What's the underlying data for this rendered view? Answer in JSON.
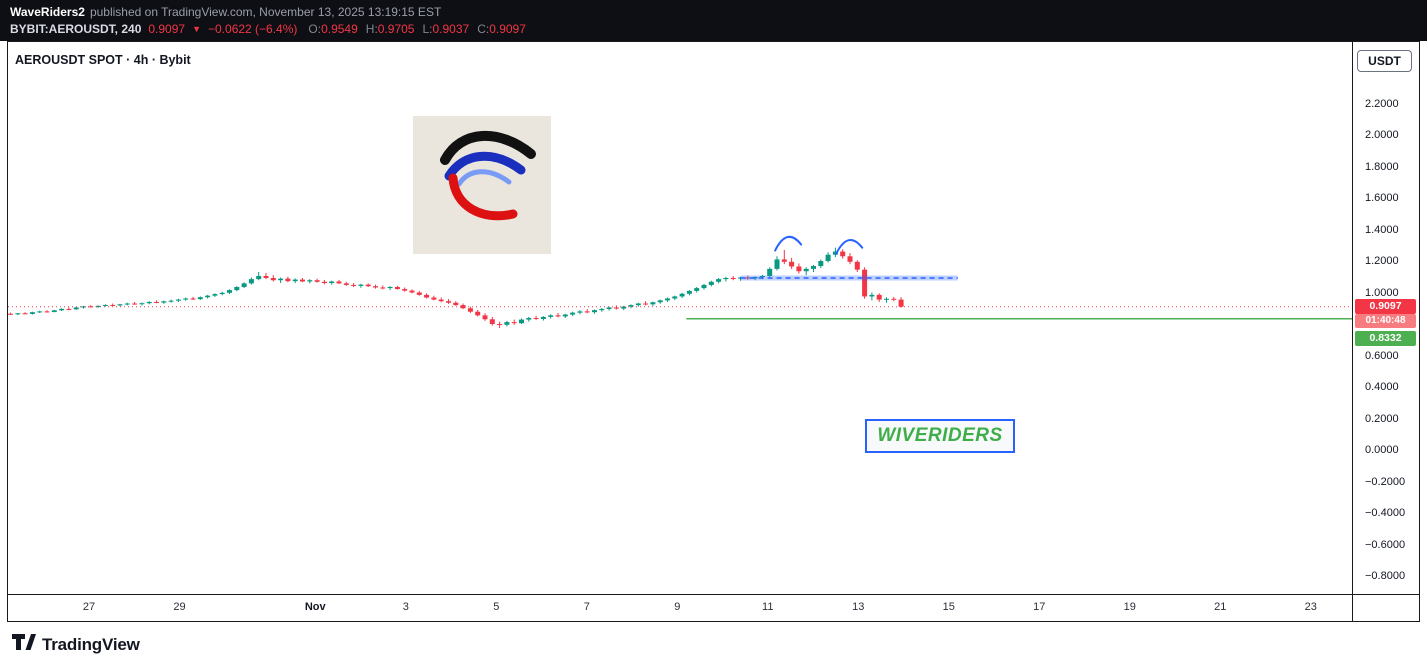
{
  "header": {
    "author": "WaveRiders2",
    "published_text": "published on TradingView.com, November 13, 2025 13:19:15 EST",
    "ticker": {
      "symbol_interval": "BYBIT:AEROUSDT, 240",
      "last": "0.9097",
      "direction": "▼",
      "change": "−0.0622 (−6.4%)",
      "ohlc": [
        {
          "label": "O:",
          "value": "0.9549"
        },
        {
          "label": "H:",
          "value": "0.9705"
        },
        {
          "label": "L:",
          "value": "0.9037"
        },
        {
          "label": "C:",
          "value": "0.9097"
        }
      ]
    }
  },
  "chart": {
    "title": "AEROUSDT SPOT · 4h · Bybit",
    "watermark": "WIVERIDERS"
  },
  "price_axis": {
    "unit": "USDT",
    "ticks": [
      {
        "label": "2.2000",
        "value": 2.2
      },
      {
        "label": "2.0000",
        "value": 2.0
      },
      {
        "label": "1.8000",
        "value": 1.8
      },
      {
        "label": "1.6000",
        "value": 1.6
      },
      {
        "label": "1.4000",
        "value": 1.4
      },
      {
        "label": "1.2000",
        "value": 1.2
      },
      {
        "label": "1.0000",
        "value": 1.0
      },
      {
        "label": "0.6000",
        "value": 0.6
      },
      {
        "label": "0.4000",
        "value": 0.4
      },
      {
        "label": "0.2000",
        "value": 0.2
      },
      {
        "label": "0.0000",
        "value": 0.0
      },
      {
        "label": "−0.2000",
        "value": -0.2
      },
      {
        "label": "−0.4000",
        "value": -0.4
      },
      {
        "label": "−0.6000",
        "value": -0.6
      },
      {
        "label": "−0.8000",
        "value": -0.8
      }
    ],
    "last_price_badge": {
      "label": "0.9097",
      "color": "#f23645"
    },
    "countdown_badge": {
      "label": "01:40:48",
      "color": "#f77c80"
    },
    "level_badge": {
      "label": "0.8332",
      "color": "#4caf50"
    }
  },
  "time_axis": {
    "ticks": [
      {
        "label": "27",
        "day": 0
      },
      {
        "label": "29",
        "day": 2
      },
      {
        "label": "Nov",
        "day": 5,
        "bold": true
      },
      {
        "label": "3",
        "day": 7
      },
      {
        "label": "5",
        "day": 9
      },
      {
        "label": "7",
        "day": 11
      },
      {
        "label": "9",
        "day": 13
      },
      {
        "label": "11",
        "day": 15
      },
      {
        "label": "13",
        "day": 17
      },
      {
        "label": "15",
        "day": 19
      },
      {
        "label": "17",
        "day": 21
      },
      {
        "label": "19",
        "day": 23
      },
      {
        "label": "21",
        "day": 25
      },
      {
        "label": "23",
        "day": 27
      }
    ]
  },
  "chart_data": {
    "type": "candlestick",
    "title": "AEROUSDT SPOT · 4h · Bybit",
    "symbol": "BYBIT:AEROUSDT",
    "interval": "4h",
    "candles_per_day": 6,
    "up_color": "#089981",
    "down_color": "#f23645",
    "visible_price_range": [
      -0.93,
      2.6
    ],
    "x_tick_dates": [
      "Oct 27",
      "Oct 29",
      "Nov 1",
      "Nov 3",
      "Nov 5",
      "Nov 7",
      "Nov 9",
      "Nov 11",
      "Nov 13",
      "Nov 15",
      "Nov 17",
      "Nov 19",
      "Nov 21",
      "Nov 23"
    ],
    "candles": [
      [
        0.865,
        0.872,
        0.858,
        0.862
      ],
      [
        0.862,
        0.87,
        0.856,
        0.868
      ],
      [
        0.868,
        0.875,
        0.862,
        0.864
      ],
      [
        0.864,
        0.878,
        0.86,
        0.875
      ],
      [
        0.875,
        0.884,
        0.87,
        0.88
      ],
      [
        0.88,
        0.888,
        0.872,
        0.876
      ],
      [
        0.876,
        0.89,
        0.874,
        0.887
      ],
      [
        0.887,
        0.9,
        0.882,
        0.896
      ],
      [
        0.896,
        0.905,
        0.888,
        0.893
      ],
      [
        0.893,
        0.91,
        0.89,
        0.905
      ],
      [
        0.905,
        0.915,
        0.898,
        0.912
      ],
      [
        0.912,
        0.92,
        0.905,
        0.908
      ],
      [
        0.908,
        0.918,
        0.902,
        0.915
      ],
      [
        0.915,
        0.925,
        0.91,
        0.921
      ],
      [
        0.921,
        0.93,
        0.914,
        0.918
      ],
      [
        0.918,
        0.928,
        0.912,
        0.925
      ],
      [
        0.925,
        0.935,
        0.918,
        0.93
      ],
      [
        0.93,
        0.94,
        0.922,
        0.926
      ],
      [
        0.926,
        0.936,
        0.918,
        0.932
      ],
      [
        0.932,
        0.945,
        0.925,
        0.94
      ],
      [
        0.94,
        0.95,
        0.932,
        0.936
      ],
      [
        0.936,
        0.948,
        0.928,
        0.944
      ],
      [
        0.944,
        0.955,
        0.936,
        0.948
      ],
      [
        0.948,
        0.96,
        0.94,
        0.955
      ],
      [
        0.955,
        0.968,
        0.948,
        0.962
      ],
      [
        0.962,
        0.972,
        0.952,
        0.958
      ],
      [
        0.958,
        0.975,
        0.952,
        0.97
      ],
      [
        0.97,
        0.985,
        0.962,
        0.98
      ],
      [
        0.98,
        0.995,
        0.972,
        0.99
      ],
      [
        0.99,
        1.005,
        0.982,
        0.998
      ],
      [
        0.998,
        1.02,
        0.99,
        1.015
      ],
      [
        1.015,
        1.04,
        1.008,
        1.035
      ],
      [
        1.035,
        1.065,
        1.028,
        1.058
      ],
      [
        1.058,
        1.095,
        1.05,
        1.085
      ],
      [
        1.085,
        1.13,
        1.078,
        1.105
      ],
      [
        1.105,
        1.125,
        1.085,
        1.092
      ],
      [
        1.092,
        1.11,
        1.07,
        1.078
      ],
      [
        1.078,
        1.095,
        1.06,
        1.088
      ],
      [
        1.088,
        1.1,
        1.065,
        1.072
      ],
      [
        1.072,
        1.09,
        1.06,
        1.082
      ],
      [
        1.082,
        1.092,
        1.066,
        1.07
      ],
      [
        1.07,
        1.085,
        1.058,
        1.078
      ],
      [
        1.078,
        1.088,
        1.062,
        1.068
      ],
      [
        1.068,
        1.08,
        1.052,
        1.06
      ],
      [
        1.06,
        1.075,
        1.05,
        1.07
      ],
      [
        1.07,
        1.08,
        1.055,
        1.058
      ],
      [
        1.058,
        1.068,
        1.042,
        1.048
      ],
      [
        1.048,
        1.06,
        1.035,
        1.042
      ],
      [
        1.042,
        1.055,
        1.03,
        1.05
      ],
      [
        1.05,
        1.058,
        1.035,
        1.04
      ],
      [
        1.04,
        1.05,
        1.025,
        1.032
      ],
      [
        1.032,
        1.045,
        1.02,
        1.028
      ],
      [
        1.028,
        1.04,
        1.015,
        1.035
      ],
      [
        1.035,
        1.042,
        1.018,
        1.022
      ],
      [
        1.022,
        1.032,
        1.005,
        1.012
      ],
      [
        1.012,
        1.02,
        0.995,
        1.0
      ],
      [
        1.0,
        1.01,
        0.98,
        0.985
      ],
      [
        0.985,
        0.995,
        0.962,
        0.968
      ],
      [
        0.968,
        0.98,
        0.95,
        0.955
      ],
      [
        0.955,
        0.968,
        0.938,
        0.945
      ],
      [
        0.945,
        0.958,
        0.928,
        0.935
      ],
      [
        0.935,
        0.945,
        0.915,
        0.92
      ],
      [
        0.92,
        0.93,
        0.895,
        0.9
      ],
      [
        0.9,
        0.91,
        0.87,
        0.878
      ],
      [
        0.878,
        0.89,
        0.848,
        0.855
      ],
      [
        0.855,
        0.868,
        0.82,
        0.83
      ],
      [
        0.83,
        0.845,
        0.79,
        0.8
      ],
      [
        0.8,
        0.815,
        0.775,
        0.795
      ],
      [
        0.795,
        0.82,
        0.785,
        0.812
      ],
      [
        0.812,
        0.828,
        0.795,
        0.805
      ],
      [
        0.805,
        0.835,
        0.8,
        0.828
      ],
      [
        0.828,
        0.845,
        0.815,
        0.838
      ],
      [
        0.838,
        0.852,
        0.825,
        0.832
      ],
      [
        0.832,
        0.85,
        0.822,
        0.845
      ],
      [
        0.845,
        0.862,
        0.835,
        0.855
      ],
      [
        0.855,
        0.87,
        0.842,
        0.848
      ],
      [
        0.848,
        0.865,
        0.838,
        0.86
      ],
      [
        0.86,
        0.878,
        0.85,
        0.872
      ],
      [
        0.872,
        0.888,
        0.862,
        0.88
      ],
      [
        0.88,
        0.895,
        0.868,
        0.875
      ],
      [
        0.875,
        0.892,
        0.865,
        0.888
      ],
      [
        0.888,
        0.902,
        0.878,
        0.895
      ],
      [
        0.895,
        0.91,
        0.885,
        0.905
      ],
      [
        0.905,
        0.918,
        0.892,
        0.898
      ],
      [
        0.898,
        0.915,
        0.888,
        0.91
      ],
      [
        0.91,
        0.925,
        0.9,
        0.92
      ],
      [
        0.92,
        0.935,
        0.91,
        0.93
      ],
      [
        0.93,
        0.945,
        0.918,
        0.925
      ],
      [
        0.925,
        0.942,
        0.915,
        0.938
      ],
      [
        0.938,
        0.955,
        0.928,
        0.95
      ],
      [
        0.95,
        0.968,
        0.94,
        0.962
      ],
      [
        0.962,
        0.98,
        0.952,
        0.975
      ],
      [
        0.975,
        0.998,
        0.965,
        0.992
      ],
      [
        0.992,
        1.015,
        0.982,
        1.01
      ],
      [
        1.01,
        1.035,
        1.0,
        1.028
      ],
      [
        1.028,
        1.055,
        1.018,
        1.048
      ],
      [
        1.048,
        1.075,
        1.038,
        1.068
      ],
      [
        1.068,
        1.092,
        1.058,
        1.085
      ],
      [
        1.085,
        1.1,
        1.07,
        1.092
      ],
      [
        1.092,
        1.105,
        1.078,
        1.088
      ],
      [
        1.088,
        1.1,
        1.075,
        1.095
      ],
      [
        1.095,
        1.108,
        1.082,
        1.09
      ],
      [
        1.09,
        1.102,
        1.078,
        1.098
      ],
      [
        1.098,
        1.112,
        1.085,
        1.105
      ],
      [
        1.105,
        1.16,
        1.098,
        1.15
      ],
      [
        1.15,
        1.23,
        1.14,
        1.21
      ],
      [
        1.21,
        1.27,
        1.18,
        1.195
      ],
      [
        1.195,
        1.22,
        1.15,
        1.165
      ],
      [
        1.165,
        1.185,
        1.12,
        1.135
      ],
      [
        1.135,
        1.16,
        1.11,
        1.15
      ],
      [
        1.15,
        1.175,
        1.13,
        1.168
      ],
      [
        1.168,
        1.21,
        1.155,
        1.2
      ],
      [
        1.2,
        1.255,
        1.19,
        1.24
      ],
      [
        1.24,
        1.285,
        1.225,
        1.26
      ],
      [
        1.26,
        1.275,
        1.215,
        1.23
      ],
      [
        1.23,
        1.25,
        1.18,
        1.195
      ],
      [
        1.195,
        1.205,
        1.13,
        1.145
      ],
      [
        1.145,
        1.16,
        0.96,
        0.975
      ],
      [
        0.975,
        1.0,
        0.95,
        0.985
      ],
      [
        0.985,
        0.995,
        0.94,
        0.955
      ],
      [
        0.955,
        0.97,
        0.935,
        0.96
      ],
      [
        0.96,
        0.972,
        0.945,
        0.9549
      ],
      [
        0.9549,
        0.9705,
        0.9037,
        0.9097
      ]
    ],
    "overlays": {
      "last_price_line": {
        "value": 0.9097,
        "color": "#f23645",
        "style": "dotted"
      },
      "horizontal_ray": {
        "value": 0.8332,
        "start_day": 13.2,
        "color": "#4caf50"
      },
      "resistance_band": {
        "value": 1.092,
        "start_day": 14.4,
        "end_day": 19.2,
        "color": "#2962ff",
        "style": "dashed"
      },
      "arc_marks": [
        {
          "day": 15.45,
          "value": 1.33,
          "color": "#2962ff"
        },
        {
          "day": 16.8,
          "value": 1.31,
          "color": "#2962ff"
        }
      ],
      "watermark_text": "WIVERIDERS"
    }
  },
  "footer": {
    "brand": "TradingView",
    "logo_icon": "tradingview-logo-icon"
  }
}
